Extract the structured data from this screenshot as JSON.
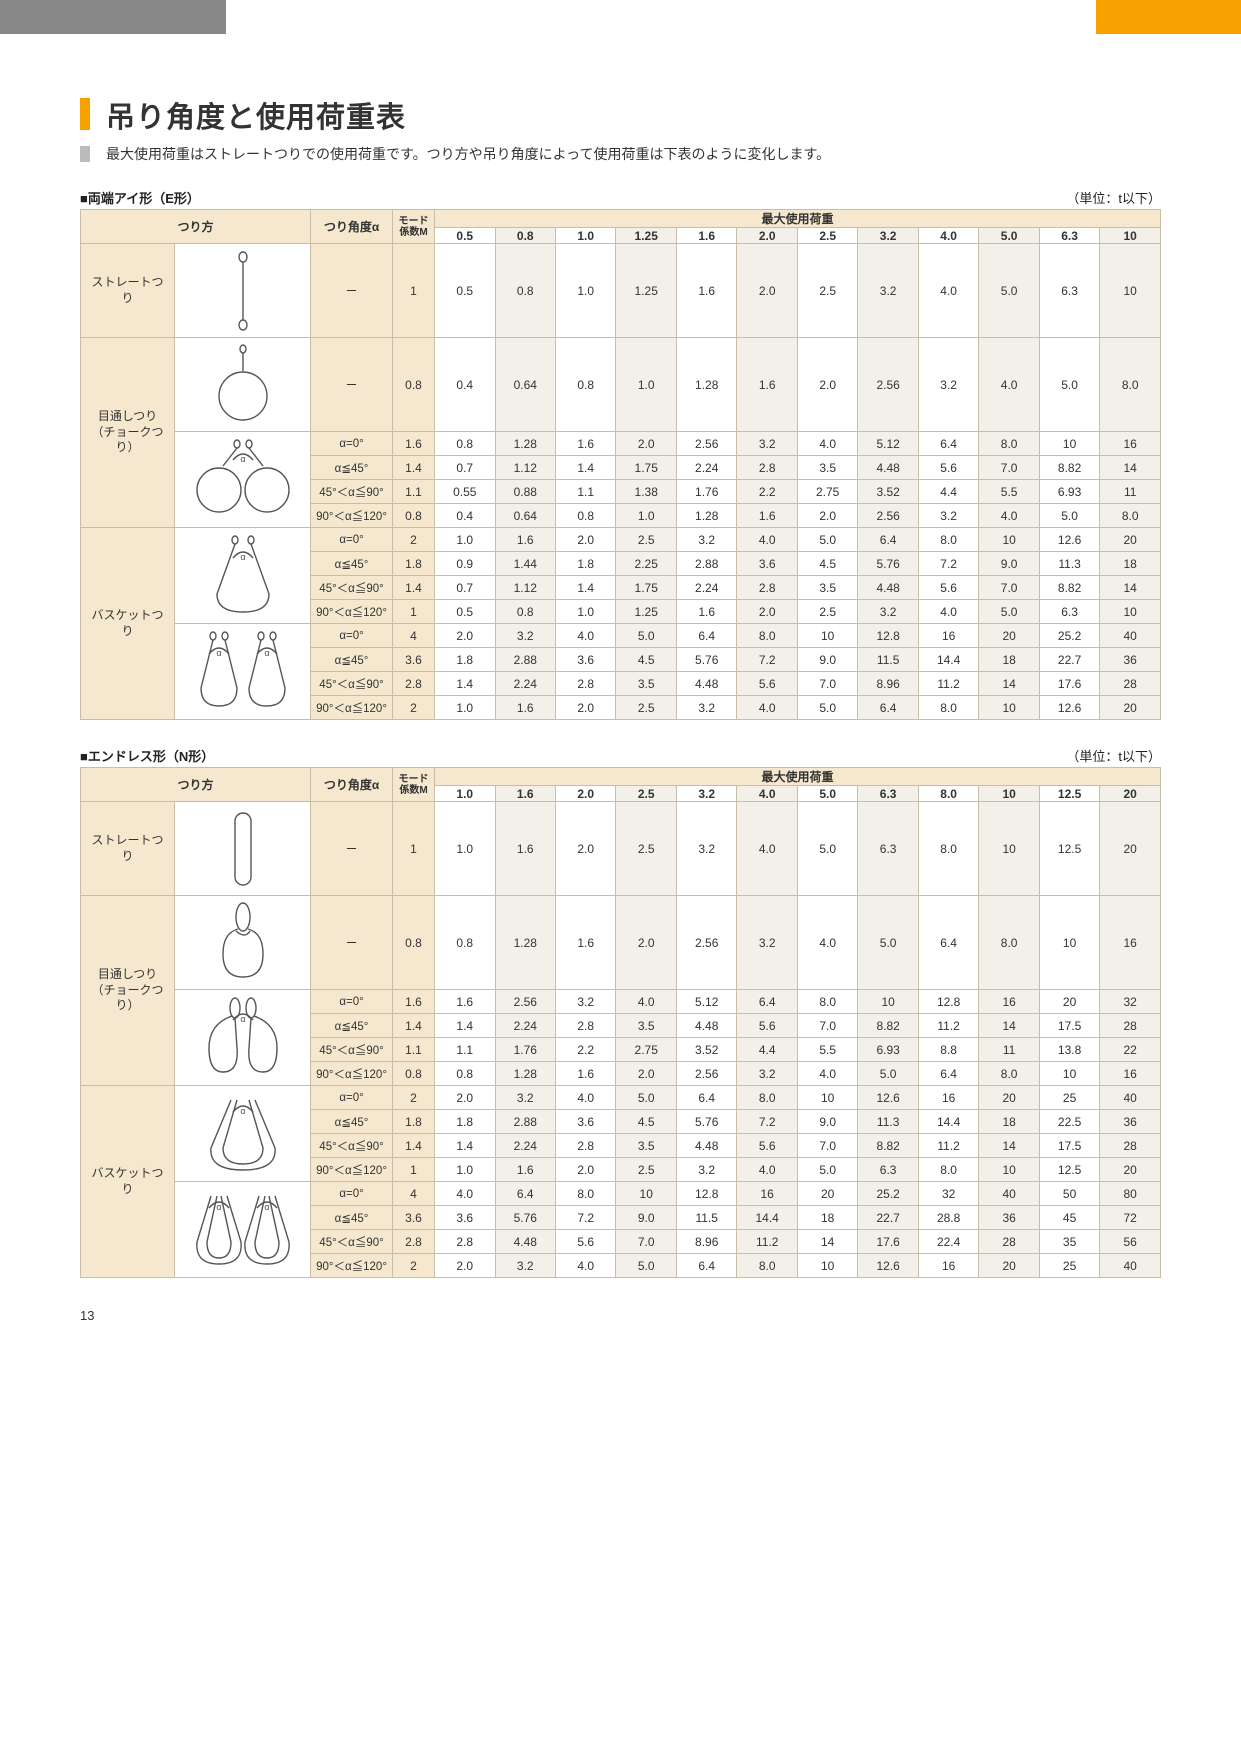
{
  "page_number": "13",
  "colors": {
    "accent": "#f6a100",
    "header_bg": "#f5e8cf",
    "alt_row": "#f3f0ea",
    "border": "#c8bda8",
    "grey_bar": "#888888"
  },
  "title": "吊り角度と使用荷重表",
  "subtitle": "最大使用荷重はストレートつりでの使用荷重です。つり方や吊り角度によって使用荷重は下表のように変化します。",
  "unit_label": "（単位：t以下）",
  "headers": {
    "turi": "つり方",
    "angle": "つり角度α",
    "mode": "モード\n係数M",
    "max_load": "最大使用荷重"
  },
  "section_e": {
    "label": "■両端アイ形（E形）",
    "capacities": [
      "0.5",
      "0.8",
      "1.0",
      "1.25",
      "1.6",
      "2.0",
      "2.5",
      "3.2",
      "4.0",
      "5.0",
      "6.3",
      "10"
    ],
    "groups": [
      {
        "name": "ストレートつり",
        "diagram": "straight-eye",
        "rows": [
          {
            "angle": "ー",
            "mode": "1",
            "vals": [
              "0.5",
              "0.8",
              "1.0",
              "1.25",
              "1.6",
              "2.0",
              "2.5",
              "3.2",
              "4.0",
              "5.0",
              "6.3",
              "10"
            ],
            "tall": true
          }
        ]
      },
      {
        "name": "目通しつり\n（チョークつり）",
        "subgroups": [
          {
            "diagram": "choke-eye-single",
            "rows": [
              {
                "angle": "ー",
                "mode": "0.8",
                "vals": [
                  "0.4",
                  "0.64",
                  "0.8",
                  "1.0",
                  "1.28",
                  "1.6",
                  "2.0",
                  "2.56",
                  "3.2",
                  "4.0",
                  "5.0",
                  "8.0"
                ],
                "tall": true
              }
            ]
          },
          {
            "diagram": "choke-eye-double",
            "rows": [
              {
                "angle": "α=0°",
                "mode": "1.6",
                "vals": [
                  "0.8",
                  "1.28",
                  "1.6",
                  "2.0",
                  "2.56",
                  "3.2",
                  "4.0",
                  "5.12",
                  "6.4",
                  "8.0",
                  "10",
                  "16"
                ]
              },
              {
                "angle": "α≦45°",
                "mode": "1.4",
                "vals": [
                  "0.7",
                  "1.12",
                  "1.4",
                  "1.75",
                  "2.24",
                  "2.8",
                  "3.5",
                  "4.48",
                  "5.6",
                  "7.0",
                  "8.82",
                  "14"
                ]
              },
              {
                "angle": "45°＜α≦90°",
                "mode": "1.1",
                "vals": [
                  "0.55",
                  "0.88",
                  "1.1",
                  "1.38",
                  "1.76",
                  "2.2",
                  "2.75",
                  "3.52",
                  "4.4",
                  "5.5",
                  "6.93",
                  "11"
                ]
              },
              {
                "angle": "90°＜α≦120°",
                "mode": "0.8",
                "vals": [
                  "0.4",
                  "0.64",
                  "0.8",
                  "1.0",
                  "1.28",
                  "1.6",
                  "2.0",
                  "2.56",
                  "3.2",
                  "4.0",
                  "5.0",
                  "8.0"
                ]
              }
            ]
          }
        ]
      },
      {
        "name": "バスケットつり",
        "subgroups": [
          {
            "diagram": "basket-eye-single",
            "rows": [
              {
                "angle": "α=0°",
                "mode": "2",
                "vals": [
                  "1.0",
                  "1.6",
                  "2.0",
                  "2.5",
                  "3.2",
                  "4.0",
                  "5.0",
                  "6.4",
                  "8.0",
                  "10",
                  "12.6",
                  "20"
                ]
              },
              {
                "angle": "α≦45°",
                "mode": "1.8",
                "vals": [
                  "0.9",
                  "1.44",
                  "1.8",
                  "2.25",
                  "2.88",
                  "3.6",
                  "4.5",
                  "5.76",
                  "7.2",
                  "9.0",
                  "11.3",
                  "18"
                ]
              },
              {
                "angle": "45°＜α≦90°",
                "mode": "1.4",
                "vals": [
                  "0.7",
                  "1.12",
                  "1.4",
                  "1.75",
                  "2.24",
                  "2.8",
                  "3.5",
                  "4.48",
                  "5.6",
                  "7.0",
                  "8.82",
                  "14"
                ]
              },
              {
                "angle": "90°＜α≦120°",
                "mode": "1",
                "vals": [
                  "0.5",
                  "0.8",
                  "1.0",
                  "1.25",
                  "1.6",
                  "2.0",
                  "2.5",
                  "3.2",
                  "4.0",
                  "5.0",
                  "6.3",
                  "10"
                ]
              }
            ]
          },
          {
            "diagram": "basket-eye-double",
            "rows": [
              {
                "angle": "α=0°",
                "mode": "4",
                "vals": [
                  "2.0",
                  "3.2",
                  "4.0",
                  "5.0",
                  "6.4",
                  "8.0",
                  "10",
                  "12.8",
                  "16",
                  "20",
                  "25.2",
                  "40"
                ]
              },
              {
                "angle": "α≦45°",
                "mode": "3.6",
                "vals": [
                  "1.8",
                  "2.88",
                  "3.6",
                  "4.5",
                  "5.76",
                  "7.2",
                  "9.0",
                  "11.5",
                  "14.4",
                  "18",
                  "22.7",
                  "36"
                ]
              },
              {
                "angle": "45°＜α≦90°",
                "mode": "2.8",
                "vals": [
                  "1.4",
                  "2.24",
                  "2.8",
                  "3.5",
                  "4.48",
                  "5.6",
                  "7.0",
                  "8.96",
                  "11.2",
                  "14",
                  "17.6",
                  "28"
                ]
              },
              {
                "angle": "90°＜α≦120°",
                "mode": "2",
                "vals": [
                  "1.0",
                  "1.6",
                  "2.0",
                  "2.5",
                  "3.2",
                  "4.0",
                  "5.0",
                  "6.4",
                  "8.0",
                  "10",
                  "12.6",
                  "20"
                ]
              }
            ]
          }
        ]
      }
    ]
  },
  "section_n": {
    "label": "■エンドレス形（N形）",
    "capacities": [
      "1.0",
      "1.6",
      "2.0",
      "2.5",
      "3.2",
      "4.0",
      "5.0",
      "6.3",
      "8.0",
      "10",
      "12.5",
      "20"
    ],
    "groups": [
      {
        "name": "ストレートつり",
        "diagram": "straight-endless",
        "rows": [
          {
            "angle": "ー",
            "mode": "1",
            "vals": [
              "1.0",
              "1.6",
              "2.0",
              "2.5",
              "3.2",
              "4.0",
              "5.0",
              "6.3",
              "8.0",
              "10",
              "12.5",
              "20"
            ],
            "tall": true
          }
        ]
      },
      {
        "name": "目通しつり\n（チョークつり）",
        "subgroups": [
          {
            "diagram": "choke-endless-single",
            "rows": [
              {
                "angle": "ー",
                "mode": "0.8",
                "vals": [
                  "0.8",
                  "1.28",
                  "1.6",
                  "2.0",
                  "2.56",
                  "3.2",
                  "4.0",
                  "5.0",
                  "6.4",
                  "8.0",
                  "10",
                  "16"
                ],
                "tall": true
              }
            ]
          },
          {
            "diagram": "choke-endless-double",
            "rows": [
              {
                "angle": "α=0°",
                "mode": "1.6",
                "vals": [
                  "1.6",
                  "2.56",
                  "3.2",
                  "4.0",
                  "5.12",
                  "6.4",
                  "8.0",
                  "10",
                  "12.8",
                  "16",
                  "20",
                  "32"
                ]
              },
              {
                "angle": "α≦45°",
                "mode": "1.4",
                "vals": [
                  "1.4",
                  "2.24",
                  "2.8",
                  "3.5",
                  "4.48",
                  "5.6",
                  "7.0",
                  "8.82",
                  "11.2",
                  "14",
                  "17.5",
                  "28"
                ]
              },
              {
                "angle": "45°＜α≦90°",
                "mode": "1.1",
                "vals": [
                  "1.1",
                  "1.76",
                  "2.2",
                  "2.75",
                  "3.52",
                  "4.4",
                  "5.5",
                  "6.93",
                  "8.8",
                  "11",
                  "13.8",
                  "22"
                ]
              },
              {
                "angle": "90°＜α≦120°",
                "mode": "0.8",
                "vals": [
                  "0.8",
                  "1.28",
                  "1.6",
                  "2.0",
                  "2.56",
                  "3.2",
                  "4.0",
                  "5.0",
                  "6.4",
                  "8.0",
                  "10",
                  "16"
                ]
              }
            ]
          }
        ]
      },
      {
        "name": "バスケットつり",
        "subgroups": [
          {
            "diagram": "basket-endless-single",
            "rows": [
              {
                "angle": "α=0°",
                "mode": "2",
                "vals": [
                  "2.0",
                  "3.2",
                  "4.0",
                  "5.0",
                  "6.4",
                  "8.0",
                  "10",
                  "12.6",
                  "16",
                  "20",
                  "25",
                  "40"
                ]
              },
              {
                "angle": "α≦45°",
                "mode": "1.8",
                "vals": [
                  "1.8",
                  "2.88",
                  "3.6",
                  "4.5",
                  "5.76",
                  "7.2",
                  "9.0",
                  "11.3",
                  "14.4",
                  "18",
                  "22.5",
                  "36"
                ]
              },
              {
                "angle": "45°＜α≦90°",
                "mode": "1.4",
                "vals": [
                  "1.4",
                  "2.24",
                  "2.8",
                  "3.5",
                  "4.48",
                  "5.6",
                  "7.0",
                  "8.82",
                  "11.2",
                  "14",
                  "17.5",
                  "28"
                ]
              },
              {
                "angle": "90°＜α≦120°",
                "mode": "1",
                "vals": [
                  "1.0",
                  "1.6",
                  "2.0",
                  "2.5",
                  "3.2",
                  "4.0",
                  "5.0",
                  "6.3",
                  "8.0",
                  "10",
                  "12.5",
                  "20"
                ]
              }
            ]
          },
          {
            "diagram": "basket-endless-double",
            "rows": [
              {
                "angle": "α=0°",
                "mode": "4",
                "vals": [
                  "4.0",
                  "6.4",
                  "8.0",
                  "10",
                  "12.8",
                  "16",
                  "20",
                  "25.2",
                  "32",
                  "40",
                  "50",
                  "80"
                ]
              },
              {
                "angle": "α≦45°",
                "mode": "3.6",
                "vals": [
                  "3.6",
                  "5.76",
                  "7.2",
                  "9.0",
                  "11.5",
                  "14.4",
                  "18",
                  "22.7",
                  "28.8",
                  "36",
                  "45",
                  "72"
                ]
              },
              {
                "angle": "45°＜α≦90°",
                "mode": "2.8",
                "vals": [
                  "2.8",
                  "4.48",
                  "5.6",
                  "7.0",
                  "8.96",
                  "11.2",
                  "14",
                  "17.6",
                  "22.4",
                  "28",
                  "35",
                  "56"
                ]
              },
              {
                "angle": "90°＜α≦120°",
                "mode": "2",
                "vals": [
                  "2.0",
                  "3.2",
                  "4.0",
                  "5.0",
                  "6.4",
                  "8.0",
                  "10",
                  "12.6",
                  "16",
                  "20",
                  "25",
                  "40"
                ]
              }
            ]
          }
        ]
      }
    ]
  }
}
